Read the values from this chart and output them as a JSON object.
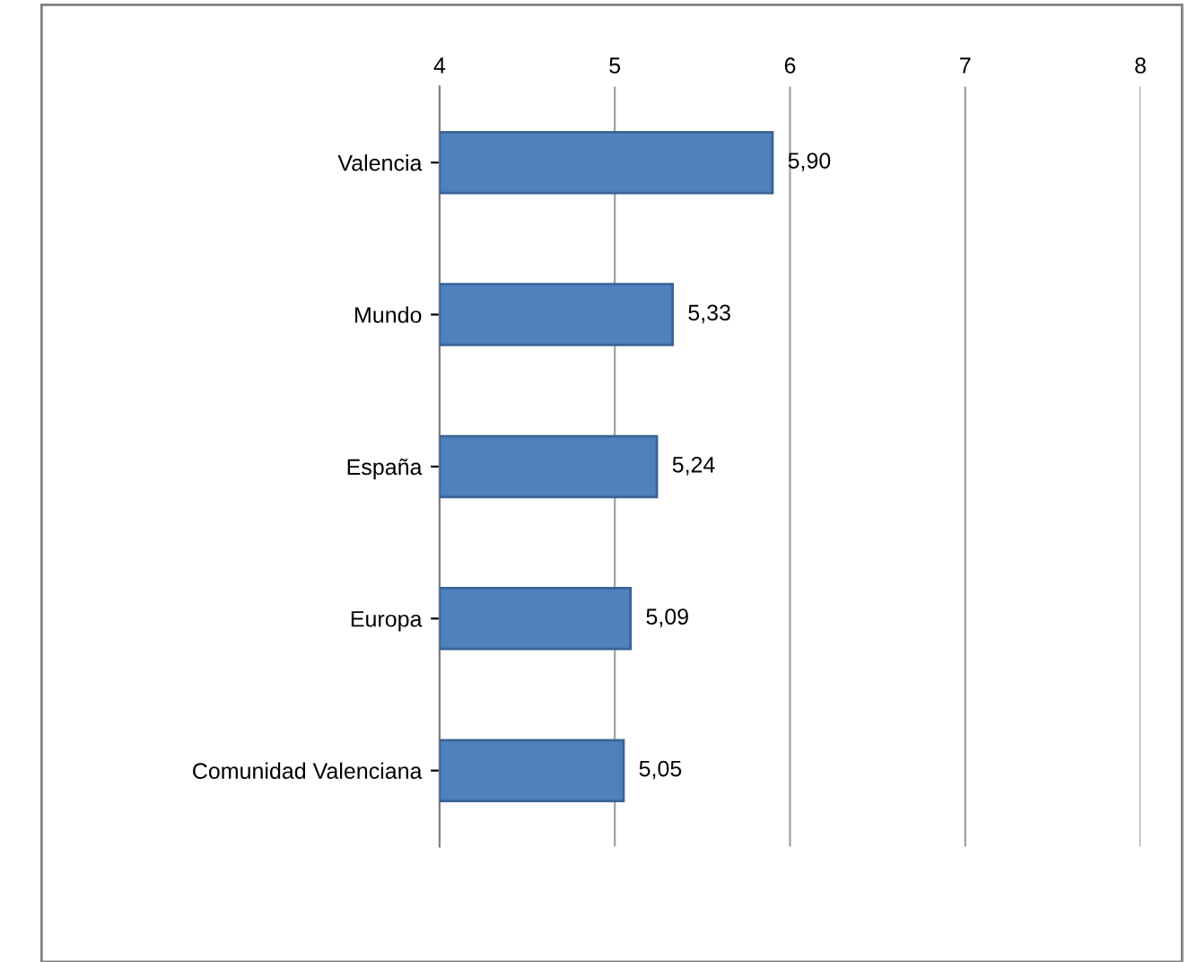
{
  "chart_data": {
    "type": "bar",
    "orientation": "horizontal",
    "categories": [
      "Valencia",
      "Mundo",
      "España",
      "Europa",
      "Comunidad Valenciana"
    ],
    "values": [
      5.9,
      5.33,
      5.24,
      5.09,
      5.05
    ],
    "value_labels": [
      "5,90",
      "5,33",
      "5,24",
      "5,09",
      "5,05"
    ],
    "color": "#4f81bd",
    "xlim": [
      4,
      8
    ],
    "xticks": [
      4,
      5,
      6,
      7,
      8
    ],
    "grid": "x",
    "legend": false
  }
}
